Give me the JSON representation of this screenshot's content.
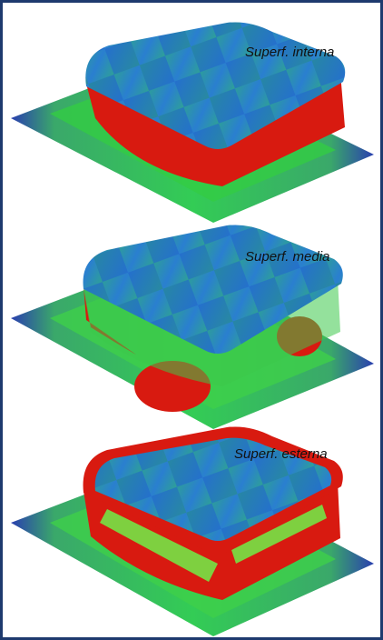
{
  "figure": {
    "panels": [
      {
        "label": "Superf. interna"
      },
      {
        "label": "Superf. media"
      },
      {
        "label": "Superf. esterna"
      }
    ]
  }
}
